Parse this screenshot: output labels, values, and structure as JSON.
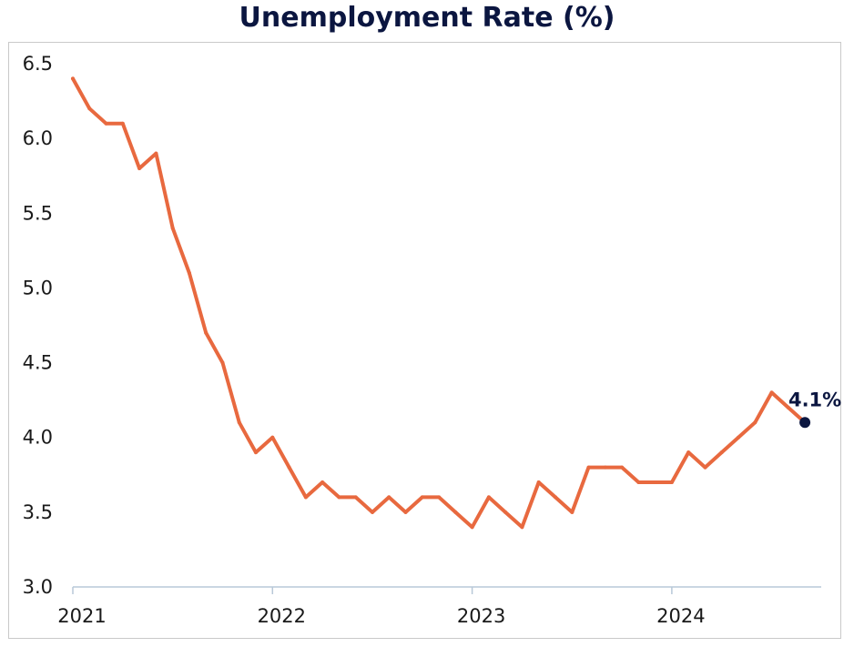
{
  "chart_data": {
    "type": "line",
    "title": "Unemployment Rate (%)",
    "xlabel": "",
    "ylabel": "",
    "ylim": [
      3.0,
      6.5
    ],
    "yticks": [
      "3.0",
      "3.5",
      "4.0",
      "4.5",
      "5.0",
      "5.5",
      "6.0",
      "6.5"
    ],
    "xticks": [
      "2021",
      "2022",
      "2023",
      "2024"
    ],
    "grid": false,
    "legend": "none",
    "line_color": "#e8693f",
    "marker_color": "#0b1640",
    "end_label": "4.1%",
    "series": [
      {
        "x": [
          "2021-01",
          "2021-02",
          "2021-03",
          "2021-04",
          "2021-05",
          "2021-06",
          "2021-07",
          "2021-08",
          "2021-09",
          "2021-10",
          "2021-11",
          "2021-12",
          "2022-01",
          "2022-02",
          "2022-03",
          "2022-04",
          "2022-05",
          "2022-06",
          "2022-07",
          "2022-08",
          "2022-09",
          "2022-10",
          "2022-11",
          "2022-12",
          "2023-01",
          "2023-02",
          "2023-03",
          "2023-04",
          "2023-05",
          "2023-06",
          "2023-07",
          "2023-08",
          "2023-09",
          "2023-10",
          "2023-11",
          "2023-12",
          "2024-01",
          "2024-02",
          "2024-03",
          "2024-04",
          "2024-05",
          "2024-06",
          "2024-07",
          "2024-08",
          "2024-09"
        ],
        "values": [
          6.4,
          6.2,
          6.1,
          6.1,
          5.8,
          5.9,
          5.4,
          5.1,
          4.7,
          4.5,
          4.1,
          3.9,
          4.0,
          3.8,
          3.6,
          3.7,
          3.6,
          3.6,
          3.5,
          3.6,
          3.5,
          3.6,
          3.6,
          3.5,
          3.4,
          3.6,
          3.5,
          3.4,
          3.7,
          3.6,
          3.5,
          3.8,
          3.8,
          3.8,
          3.7,
          3.7,
          3.7,
          3.9,
          3.8,
          3.9,
          4.0,
          4.1,
          4.3,
          4.2,
          4.1
        ]
      }
    ]
  }
}
